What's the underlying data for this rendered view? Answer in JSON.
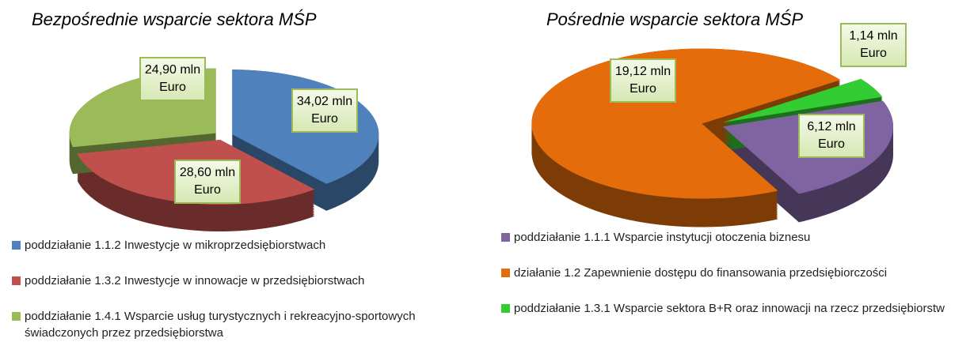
{
  "chart_data": [
    {
      "type": "pie",
      "title": "Bezpośrednie wsparcie sektora MŚP",
      "categories": [
        "poddziałanie 1.1.2 Inwestycje w mikroprzedsiębiorstwach",
        "poddziałanie 1.3.2 Inwestycje w innowacje w przedsiębiorstwach",
        "poddziałanie 1.4.1 Wsparcie usług turystycznych i rekreacyjno-sportowych świadczonych przez przedsiębiorstwa"
      ],
      "values": [
        34.02,
        28.6,
        24.9
      ],
      "value_labels": [
        "34,02 mln Euro",
        "28,60 mln Euro",
        "24,90 mln Euro"
      ],
      "colors": [
        "#4f81bd",
        "#c0504d",
        "#9bbb59"
      ]
    },
    {
      "type": "pie",
      "title": "Pośrednie wsparcie sektora MŚP",
      "categories": [
        "poddziałanie 1.1.1 Wsparcie instytucji otoczenia biznesu",
        "działanie 1.2 Zapewnienie dostępu do finansowania przedsiębiorczości",
        "poddziałanie 1.3.1 Wsparcie sektora B+R oraz innowacji na rzecz przedsiębiorstw"
      ],
      "values": [
        6.12,
        19.12,
        1.14
      ],
      "value_labels": [
        "6,12 mln Euro",
        "19,12 mln Euro",
        "1,14 mln Euro"
      ],
      "colors": [
        "#8064a2",
        "#e46c0a",
        "#33cc33"
      ]
    }
  ]
}
